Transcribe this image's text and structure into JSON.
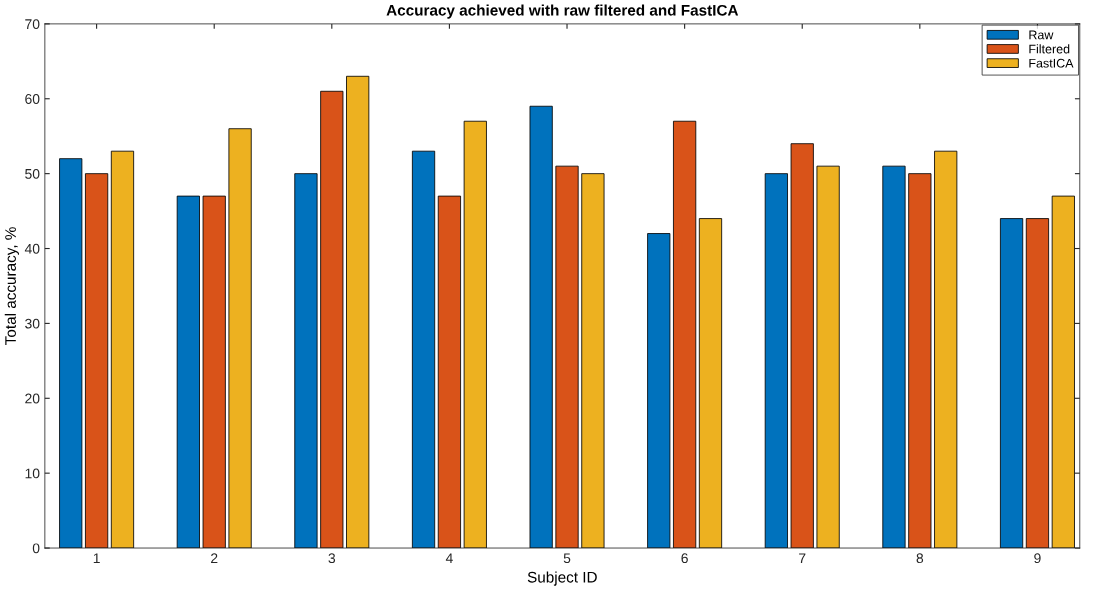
{
  "chart_data": {
    "type": "bar",
    "title": "Accuracy achieved with raw filtered and FastICA",
    "xlabel": "Subject ID",
    "ylabel": "Total accuracy, %",
    "categories": [
      "1",
      "2",
      "3",
      "4",
      "5",
      "6",
      "7",
      "8",
      "9"
    ],
    "series": [
      {
        "name": "Raw",
        "color": "#0072bd",
        "values": [
          52,
          47,
          50,
          53,
          59,
          42,
          50,
          51,
          44
        ]
      },
      {
        "name": "Filtered",
        "color": "#d95319",
        "values": [
          50,
          47,
          61,
          47,
          51,
          57,
          54,
          50,
          44
        ]
      },
      {
        "name": "FastICA",
        "color": "#edb120",
        "values": [
          53,
          56,
          63,
          57,
          50,
          44,
          51,
          53,
          47
        ]
      }
    ],
    "ylim": [
      0,
      70
    ],
    "yticks": [
      0,
      10,
      20,
      30,
      40,
      50,
      60,
      70
    ],
    "grid": false,
    "legend": "top right"
  }
}
